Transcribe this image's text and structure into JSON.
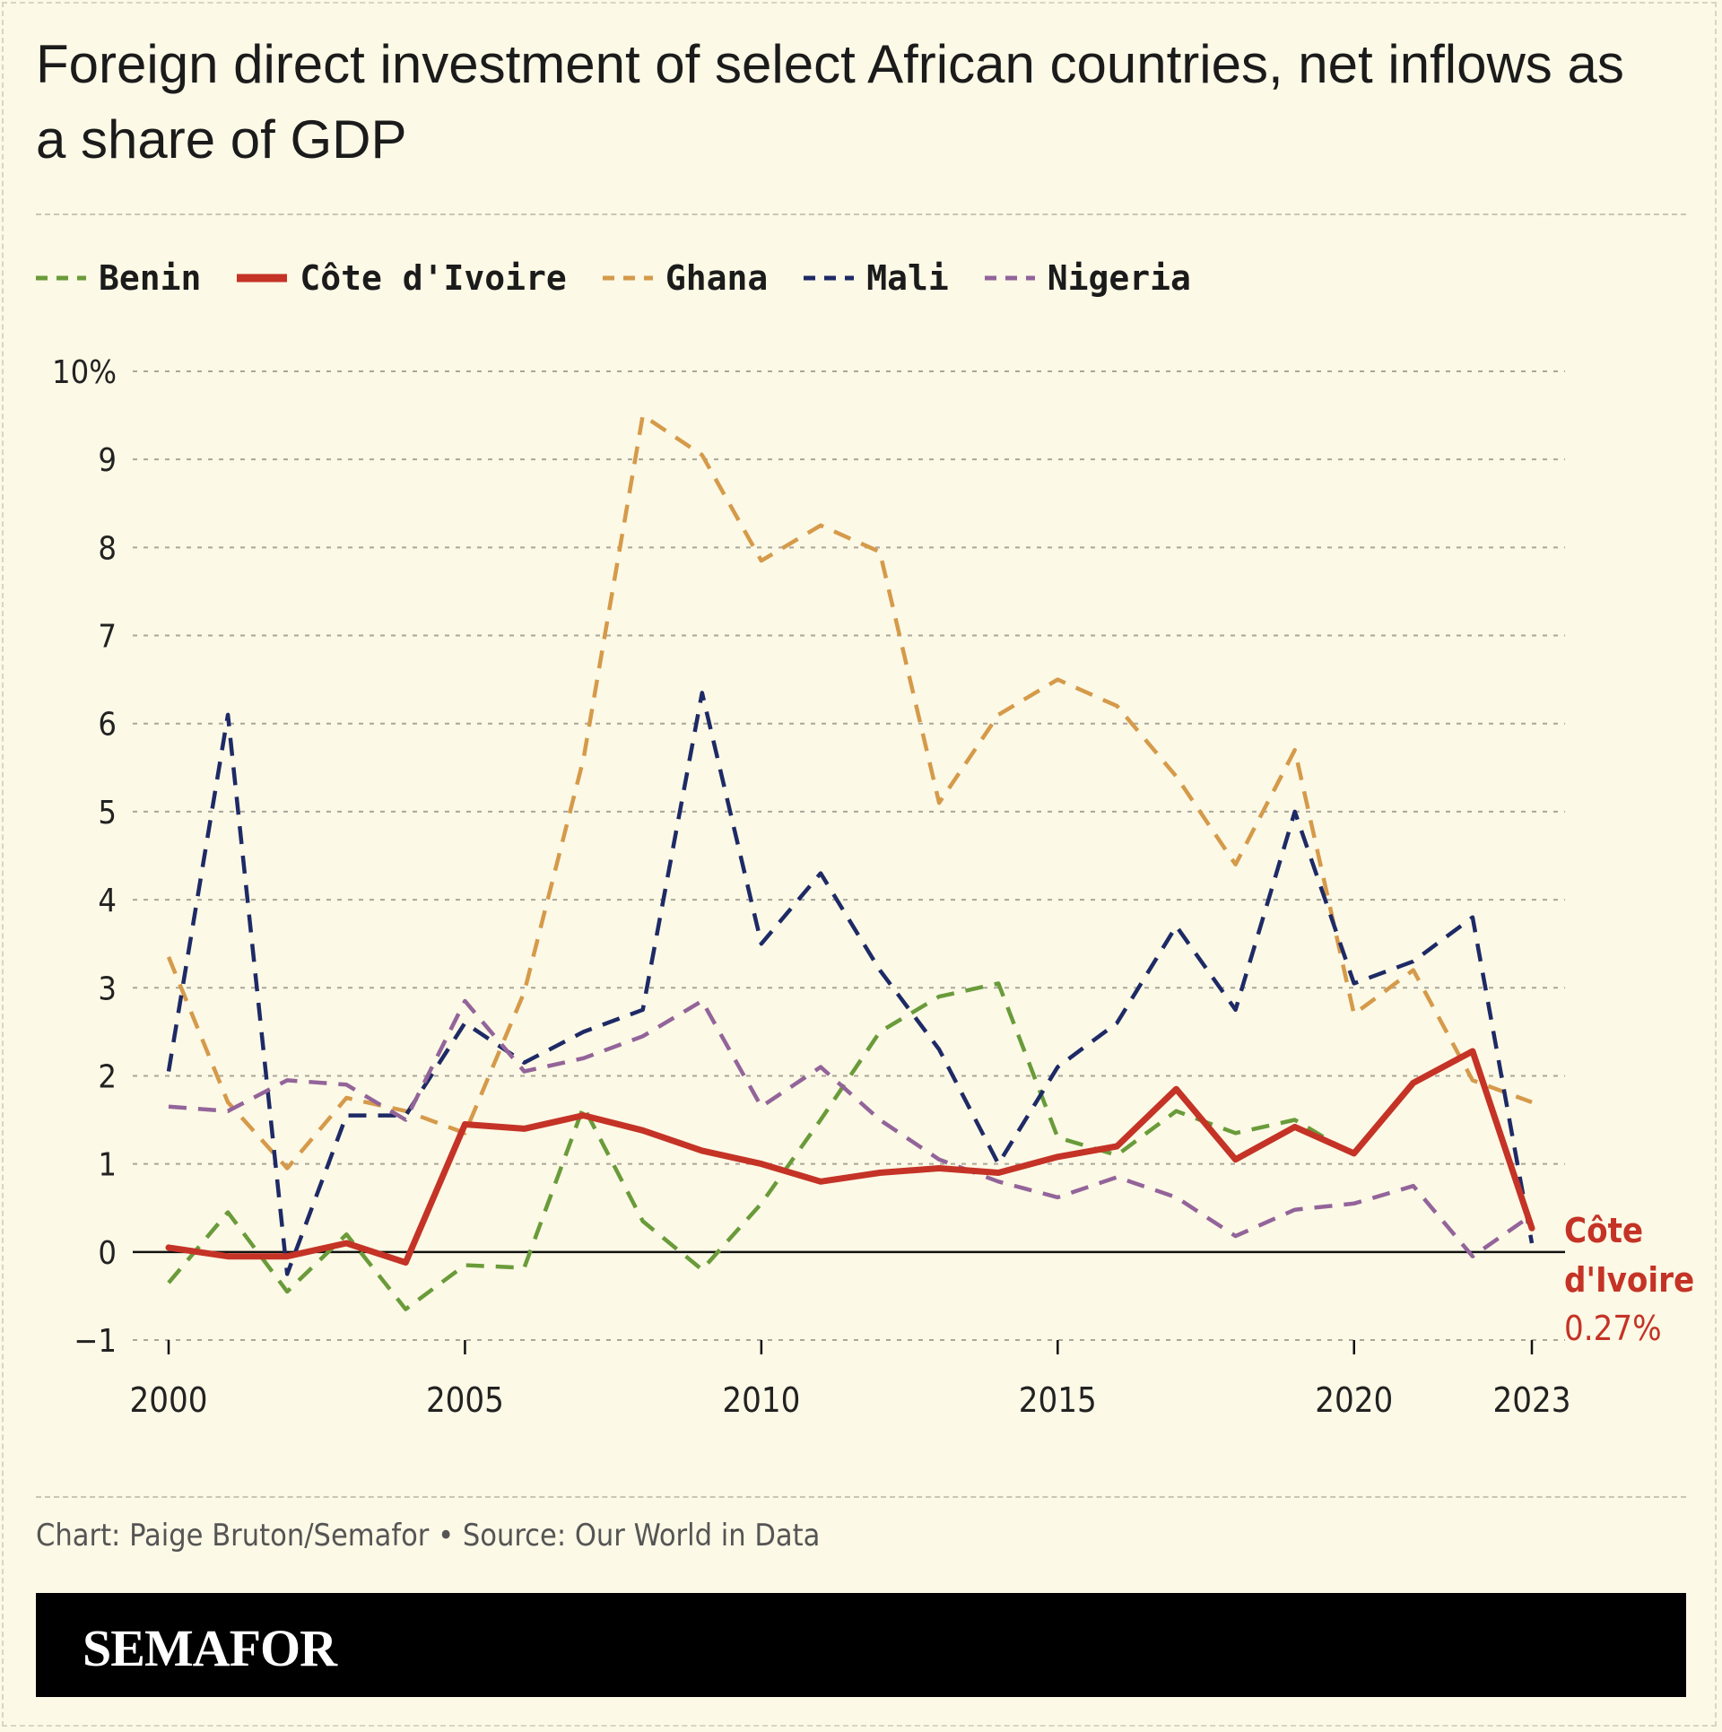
{
  "title": "Foreign direct investment of select African countries, net inflows as a share of GDP",
  "credit": "Chart: Paige Bruton/Semafor • Source: Our World in Data",
  "brand": "SEMAFOR",
  "colors": {
    "background": "#fcf9e6",
    "Benin": "#6a9b3a",
    "Côte d'Ivoire": "#c43326",
    "Ghana": "#d59a4a",
    "Mali": "#1e2a66",
    "Nigeria": "#93649a"
  },
  "chart_data": {
    "type": "line",
    "x": [
      2000,
      2001,
      2002,
      2003,
      2004,
      2005,
      2006,
      2007,
      2008,
      2009,
      2010,
      2011,
      2012,
      2013,
      2014,
      2015,
      2016,
      2017,
      2018,
      2019,
      2020,
      2021,
      2022,
      2023
    ],
    "series": [
      {
        "name": "Benin",
        "style": "dashed",
        "values": [
          -0.35,
          0.45,
          -0.45,
          0.2,
          -0.65,
          -0.15,
          -0.18,
          1.65,
          0.35,
          -0.2,
          0.55,
          1.5,
          2.5,
          2.9,
          3.05,
          1.3,
          1.1,
          1.6,
          1.35,
          1.5,
          1.1,
          null,
          null,
          null
        ]
      },
      {
        "name": "Côte d'Ivoire",
        "style": "solid",
        "values": [
          0.05,
          -0.05,
          -0.05,
          0.1,
          -0.12,
          1.45,
          1.4,
          1.55,
          1.38,
          1.15,
          1.0,
          0.8,
          0.9,
          0.95,
          0.9,
          1.08,
          1.2,
          1.85,
          1.05,
          1.42,
          1.12,
          1.92,
          2.28,
          0.27
        ]
      },
      {
        "name": "Ghana",
        "style": "dashed",
        "values": [
          3.35,
          1.7,
          0.95,
          1.75,
          1.6,
          1.35,
          2.95,
          5.6,
          9.5,
          9.05,
          7.85,
          8.25,
          7.95,
          5.1,
          6.1,
          6.5,
          6.2,
          5.4,
          4.4,
          5.7,
          2.7,
          3.2,
          1.95,
          1.7
        ]
      },
      {
        "name": "Mali",
        "style": "dashed",
        "values": [
          2.05,
          6.1,
          -0.25,
          1.55,
          1.55,
          2.6,
          2.15,
          2.5,
          2.75,
          6.35,
          3.5,
          4.3,
          3.2,
          2.3,
          1.0,
          2.1,
          2.6,
          3.7,
          2.75,
          5.0,
          3.05,
          3.3,
          3.8,
          0.1
        ]
      },
      {
        "name": "Nigeria",
        "style": "dashed",
        "values": [
          1.65,
          1.6,
          1.95,
          1.9,
          1.5,
          2.85,
          2.05,
          2.2,
          2.45,
          2.85,
          1.65,
          2.1,
          1.5,
          1.05,
          0.8,
          0.62,
          0.85,
          0.62,
          0.18,
          0.48,
          0.55,
          0.75,
          -0.05,
          0.42
        ]
      }
    ],
    "ylim": [
      -1,
      10
    ],
    "yticks": [
      -1,
      0,
      1,
      2,
      3,
      4,
      5,
      6,
      7,
      8,
      9,
      10
    ],
    "ytick_labels": [
      "−1",
      "0",
      "1",
      "2",
      "3",
      "4",
      "5",
      "6",
      "7",
      "8",
      "9",
      "10%"
    ],
    "xticks": [
      2000,
      2005,
      2010,
      2015,
      2020,
      2023
    ],
    "xtick_labels": [
      "2000",
      "2005",
      "2010",
      "2015",
      "2020",
      "2023"
    ],
    "grid": true,
    "legend_placement": "top-left",
    "annotation": {
      "series": "Côte d'Ivoire",
      "label_lines": [
        "Côte",
        "d'Ivoire"
      ],
      "value_label": "0.27%"
    }
  }
}
